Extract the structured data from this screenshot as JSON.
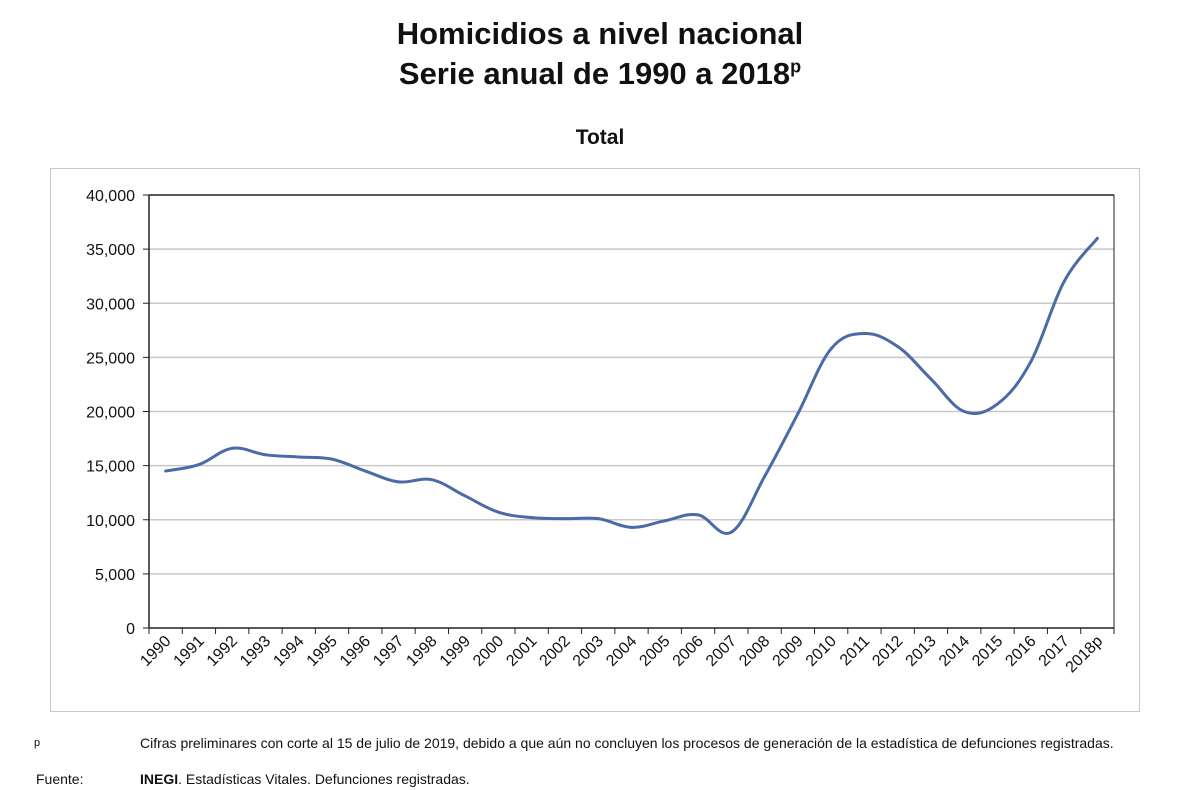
{
  "header": {
    "title_line1": "Homicidios a nivel nacional",
    "title_line2": "Serie anual de 1990 a 2018",
    "title_sup": "p",
    "subtitle": "Total"
  },
  "footnote": {
    "marker": "p",
    "text": "Cifras preliminares con corte al 15 de julio de 2019, debido a que aún no concluyen los procesos de generación de la estadística de defunciones registradas."
  },
  "source": {
    "label": "Fuente:",
    "org": "INEGI",
    "text": ". Estadísticas Vitales. Defunciones registradas."
  },
  "colors": {
    "line": "#4a6aa8",
    "grid": "#c8c8c8",
    "axis": "#222222"
  },
  "chart_data": {
    "type": "line",
    "title": "Total",
    "xlabel": "",
    "ylabel": "",
    "ylim": [
      0,
      40000
    ],
    "yticks": [
      "0",
      "5,000",
      "10,000",
      "15,000",
      "20,000",
      "25,000",
      "30,000",
      "35,000",
      "40,000"
    ],
    "grid": true,
    "legend": "none",
    "categories": [
      "1990",
      "1991",
      "1992",
      "1993",
      "1994",
      "1995",
      "1996",
      "1997",
      "1998",
      "1999",
      "2000",
      "2001",
      "2002",
      "2003",
      "2004",
      "2005",
      "2006",
      "2007",
      "2008",
      "2009",
      "2010",
      "2011",
      "2012",
      "2013",
      "2014",
      "2015",
      "2016",
      "2017",
      "2018p"
    ],
    "series": [
      {
        "values": [
          14500,
          15100,
          16600,
          16000,
          15800,
          15600,
          14500,
          13500,
          13700,
          12200,
          10700,
          10200,
          10100,
          10100,
          9300,
          9900,
          10450,
          8850,
          14000,
          19800,
          25800,
          27200,
          26000,
          23000,
          20000,
          20700,
          24600,
          32000,
          36000
        ]
      }
    ]
  }
}
